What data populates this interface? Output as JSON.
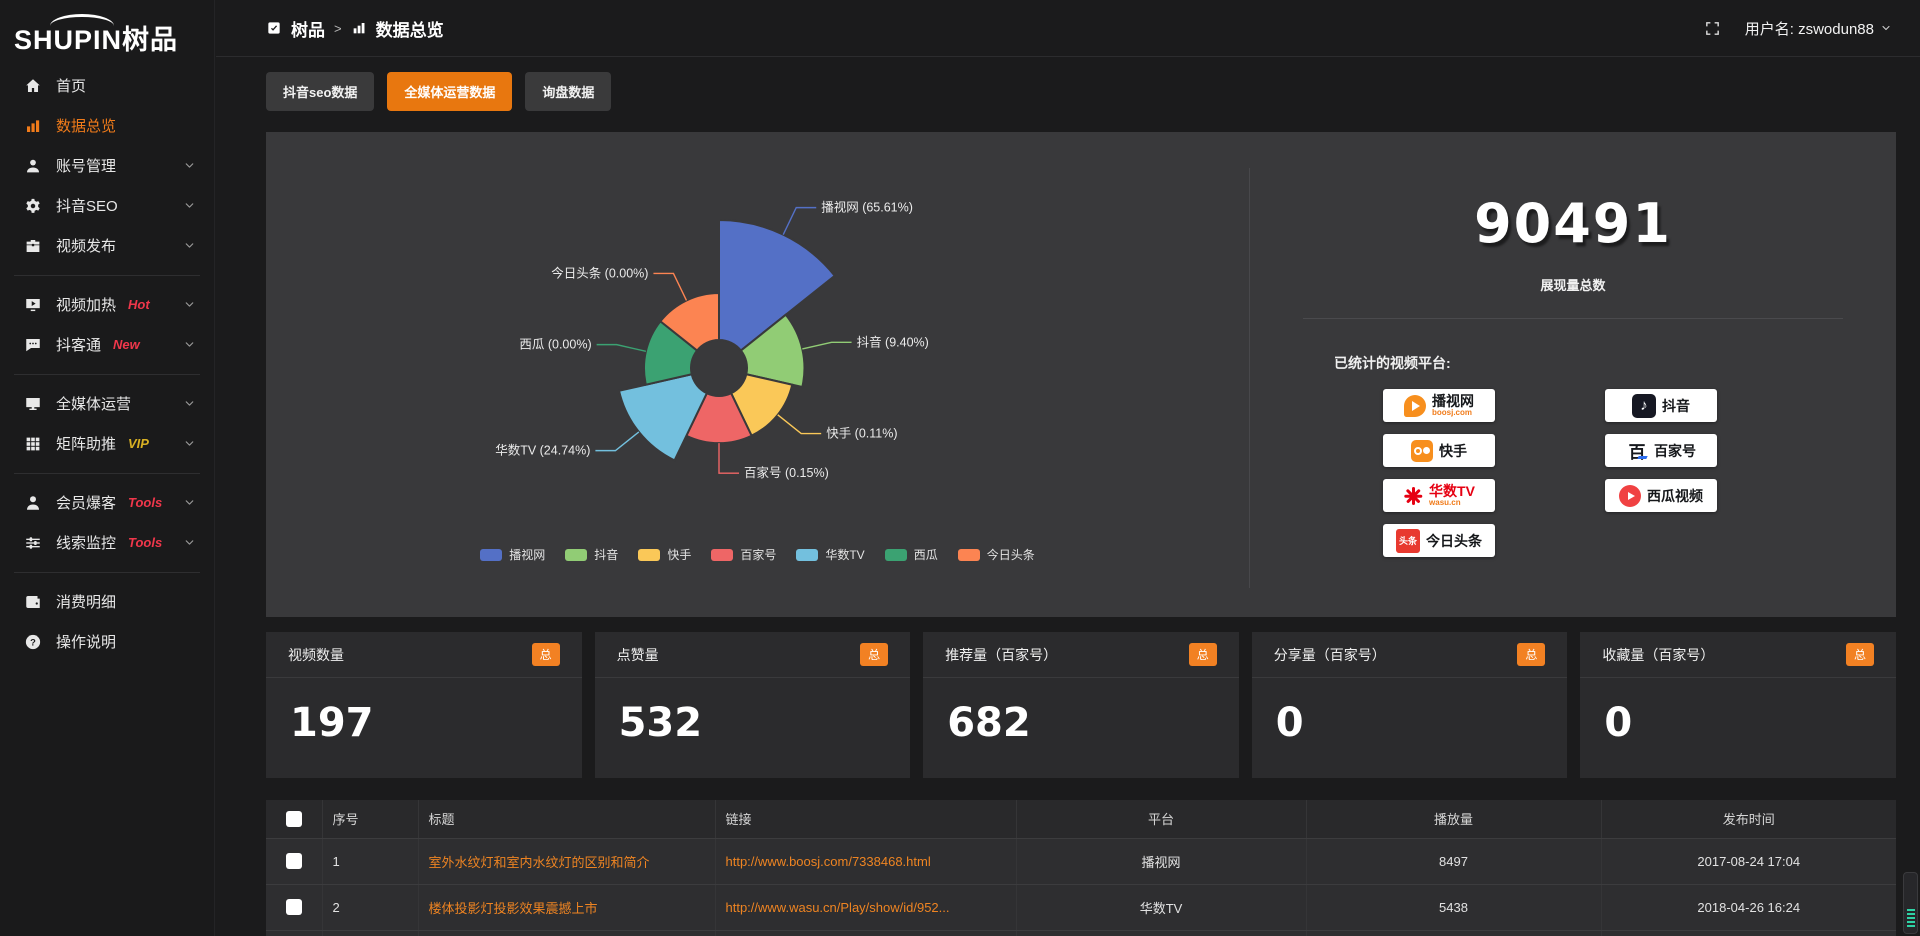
{
  "brand": {
    "logo_text": "SHUPIN树品"
  },
  "topbar": {
    "breadcrumb_app": "树品",
    "breadcrumb_sep": ">",
    "breadcrumb_page": "数据总览",
    "username": "用户名: zswodun88"
  },
  "sidebar": {
    "items": [
      {
        "icon": "home-icon",
        "label": "首页"
      },
      {
        "icon": "chart-bars-icon",
        "label": "数据总览",
        "active": true
      },
      {
        "icon": "user-icon",
        "label": "账号管理",
        "chevron": true
      },
      {
        "icon": "gear-icon",
        "label": "抖音SEO",
        "chevron": true
      },
      {
        "icon": "publish-icon",
        "label": "视频发布",
        "chevron": true
      },
      {
        "divider": true
      },
      {
        "icon": "monitor-play-icon",
        "label": "视频加热",
        "badge": "Hot",
        "badge_color": "#f0374b",
        "chevron": true
      },
      {
        "icon": "chat-icon",
        "label": "抖客通",
        "badge": "New",
        "badge_color": "#f0374b",
        "chevron": true
      },
      {
        "divider": true
      },
      {
        "icon": "monitor-icon",
        "label": "全媒体运营",
        "chevron": true
      },
      {
        "icon": "grid-icon",
        "label": "矩阵助推",
        "badge": "VIP",
        "badge_color": "#d9b123",
        "chevron": true
      },
      {
        "divider": true
      },
      {
        "icon": "member-icon",
        "label": "会员爆客",
        "badge": "Tools",
        "badge_color": "#f0374b",
        "chevron": true
      },
      {
        "icon": "sliders-icon",
        "label": "线索监控",
        "badge": "Tools",
        "badge_color": "#f0374b",
        "chevron": true
      },
      {
        "divider": true
      },
      {
        "icon": "wallet-icon",
        "label": "消费明细"
      },
      {
        "icon": "question-icon",
        "label": "操作说明"
      }
    ]
  },
  "tabs": [
    {
      "label": "抖音seo数据"
    },
    {
      "label": "全媒体运营数据",
      "active": true
    },
    {
      "label": "询盘数据"
    }
  ],
  "chart_data": {
    "type": "pie",
    "variant": "nightingale_rose",
    "labels": [
      "播视网",
      "抖音",
      "快手",
      "百家号",
      "华数TV",
      "西瓜",
      "今日头条"
    ],
    "values_percent": [
      65.61,
      9.4,
      0.11,
      0.15,
      24.74,
      0.0,
      0.0
    ],
    "point_labels": [
      "播视网 (65.61%)",
      "抖音 (9.40%)",
      "快手 (0.11%)",
      "百家号 (0.15%)",
      "华数TV (24.74%)",
      "西瓜 (0.00%)",
      "今日头条 (0.00%)"
    ],
    "colors": [
      "#5470c6",
      "#91cc75",
      "#fac858",
      "#ee6666",
      "#73c0de",
      "#3ba272",
      "#fc8452"
    ],
    "legend": [
      "播视网",
      "抖音",
      "快手",
      "百家号",
      "华数TV",
      "西瓜",
      "今日头条"
    ],
    "legend_position": "bottom"
  },
  "summary": {
    "total_value": "90491",
    "total_label": "展现量总数",
    "platforms_title": "已统计的视频平台:",
    "platforms_left": [
      {
        "icon": "boosj-logo",
        "name": "播视网",
        "sub": "boosj.com"
      },
      {
        "icon": "kuaishou-logo",
        "name": "快手"
      },
      {
        "icon": "wasu-logo",
        "name": "华数TV",
        "sub": "wasu.cn"
      },
      {
        "icon": "toutiao-logo",
        "name": "今日头条"
      }
    ],
    "platforms_right": [
      {
        "icon": "douyin-logo",
        "name": "抖音"
      },
      {
        "icon": "baijiahao-logo",
        "name": "百家号"
      },
      {
        "icon": "xigua-logo",
        "name": "西瓜视频"
      }
    ]
  },
  "stat_cards": [
    {
      "title": "视频数量",
      "badge": "总",
      "value": "197"
    },
    {
      "title": "点赞量",
      "badge": "总",
      "value": "532"
    },
    {
      "title": "推荐量（百家号）",
      "badge": "总",
      "value": "682"
    },
    {
      "title": "分享量（百家号）",
      "badge": "总",
      "value": "0"
    },
    {
      "title": "收藏量（百家号）",
      "badge": "总",
      "value": "0"
    }
  ],
  "table": {
    "headers": [
      "序号",
      "标题",
      "链接",
      "平台",
      "播放量",
      "发布时间"
    ],
    "rows": [
      {
        "index": "1",
        "title": "室外水纹灯和室内水纹灯的区别和简介",
        "link": "http://www.boosj.com/7338468.html",
        "platform": "播视网",
        "plays": "8497",
        "published": "2017-08-24 17:04"
      },
      {
        "index": "2",
        "title": "楼体投影灯投影效果震撼上市",
        "link": "http://www.wasu.cn/Play/show/id/952...",
        "platform": "华数TV",
        "plays": "5438",
        "published": "2018-04-26 16:24"
      }
    ]
  },
  "colors": {
    "accent": "#f07b1a",
    "tab_active": "#e8770f",
    "link": "#ee8422",
    "panel_bg": "#39393b"
  }
}
